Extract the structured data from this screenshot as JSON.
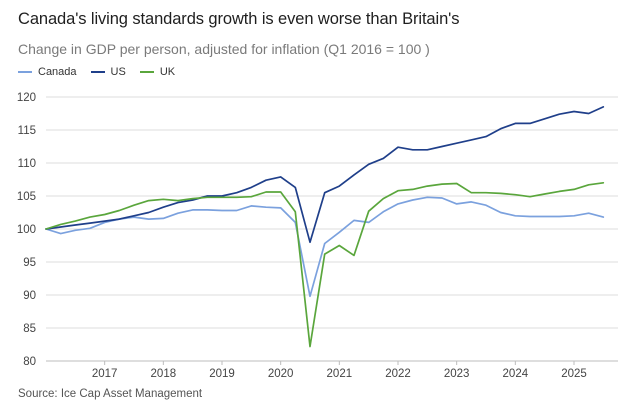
{
  "title": "Canada's living standards growth is even worse than Britain's",
  "subtitle": "Change in GDP per person, adjusted for inflation (Q1 2016 = 100 )",
  "source": "Source: Ice Cap Asset Management",
  "legend": [
    {
      "name": "Canada",
      "color": "#7ba1de"
    },
    {
      "name": "US",
      "color": "#1f3f8a"
    },
    {
      "name": "UK",
      "color": "#5aa63c"
    }
  ],
  "chart_data": {
    "type": "line",
    "title": "Canada's living standards growth is even worse than Britain's",
    "subtitle": "Change in GDP per person, adjusted for inflation (Q1 2016 = 100 )",
    "xlabel": "",
    "ylabel": "",
    "ylim": [
      80,
      120
    ],
    "yticks": [
      80,
      85,
      90,
      95,
      100,
      105,
      110,
      115,
      120
    ],
    "xlim": [
      2016.0,
      2025.75
    ],
    "xticks": [
      2017,
      2018,
      2019,
      2020,
      2021,
      2022,
      2023,
      2024,
      2025
    ],
    "xtick_labels": [
      "2017",
      "2018",
      "2019",
      "2020",
      "2021",
      "2022",
      "2023",
      "2024",
      "2025"
    ],
    "grid": "horizontal",
    "legend_position": "top-left",
    "x": [
      2016.0,
      2016.25,
      2016.5,
      2016.75,
      2017.0,
      2017.25,
      2017.5,
      2017.75,
      2018.0,
      2018.25,
      2018.5,
      2018.75,
      2019.0,
      2019.25,
      2019.5,
      2019.75,
      2020.0,
      2020.25,
      2020.5,
      2020.75,
      2021.0,
      2021.25,
      2021.5,
      2021.75,
      2022.0,
      2022.25,
      2022.5,
      2022.75,
      2023.0,
      2023.25,
      2023.5,
      2023.75,
      2024.0,
      2024.25,
      2024.5,
      2024.75,
      2025.0,
      2025.25,
      2025.5
    ],
    "series": [
      {
        "name": "Canada",
        "color": "#7ba1de",
        "values": [
          100.0,
          99.3,
          99.8,
          100.1,
          101.0,
          101.5,
          101.8,
          101.5,
          101.6,
          102.4,
          102.9,
          102.9,
          102.8,
          102.8,
          103.5,
          103.3,
          103.2,
          101.0,
          89.8,
          97.8,
          99.5,
          101.3,
          101.0,
          102.6,
          103.8,
          104.4,
          104.8,
          104.7,
          103.8,
          104.1,
          103.6,
          102.5,
          102.0,
          101.9,
          101.9,
          101.9,
          102.0,
          102.4,
          101.8
        ]
      },
      {
        "name": "US",
        "color": "#1f3f8a",
        "values": [
          100.0,
          100.3,
          100.6,
          100.9,
          101.2,
          101.5,
          102.0,
          102.5,
          103.3,
          104.0,
          104.4,
          105.0,
          105.0,
          105.5,
          106.3,
          107.4,
          107.9,
          106.3,
          98.0,
          105.5,
          106.5,
          108.2,
          109.8,
          110.7,
          112.4,
          112.0,
          112.0,
          112.5,
          113.0,
          113.5,
          114.0,
          115.2,
          116.0,
          116.0,
          116.7,
          117.4,
          117.8,
          117.5,
          118.5
        ]
      },
      {
        "name": "UK",
        "color": "#5aa63c",
        "values": [
          100.0,
          100.7,
          101.2,
          101.8,
          102.2,
          102.8,
          103.6,
          104.3,
          104.5,
          104.3,
          104.6,
          104.8,
          104.8,
          104.8,
          104.9,
          105.6,
          105.6,
          102.6,
          82.2,
          96.2,
          97.5,
          96.0,
          102.7,
          104.6,
          105.8,
          106.0,
          106.5,
          106.8,
          106.9,
          105.5,
          105.5,
          105.4,
          105.2,
          104.9,
          105.3,
          105.7,
          106.0,
          106.7,
          107.0
        ]
      }
    ]
  }
}
